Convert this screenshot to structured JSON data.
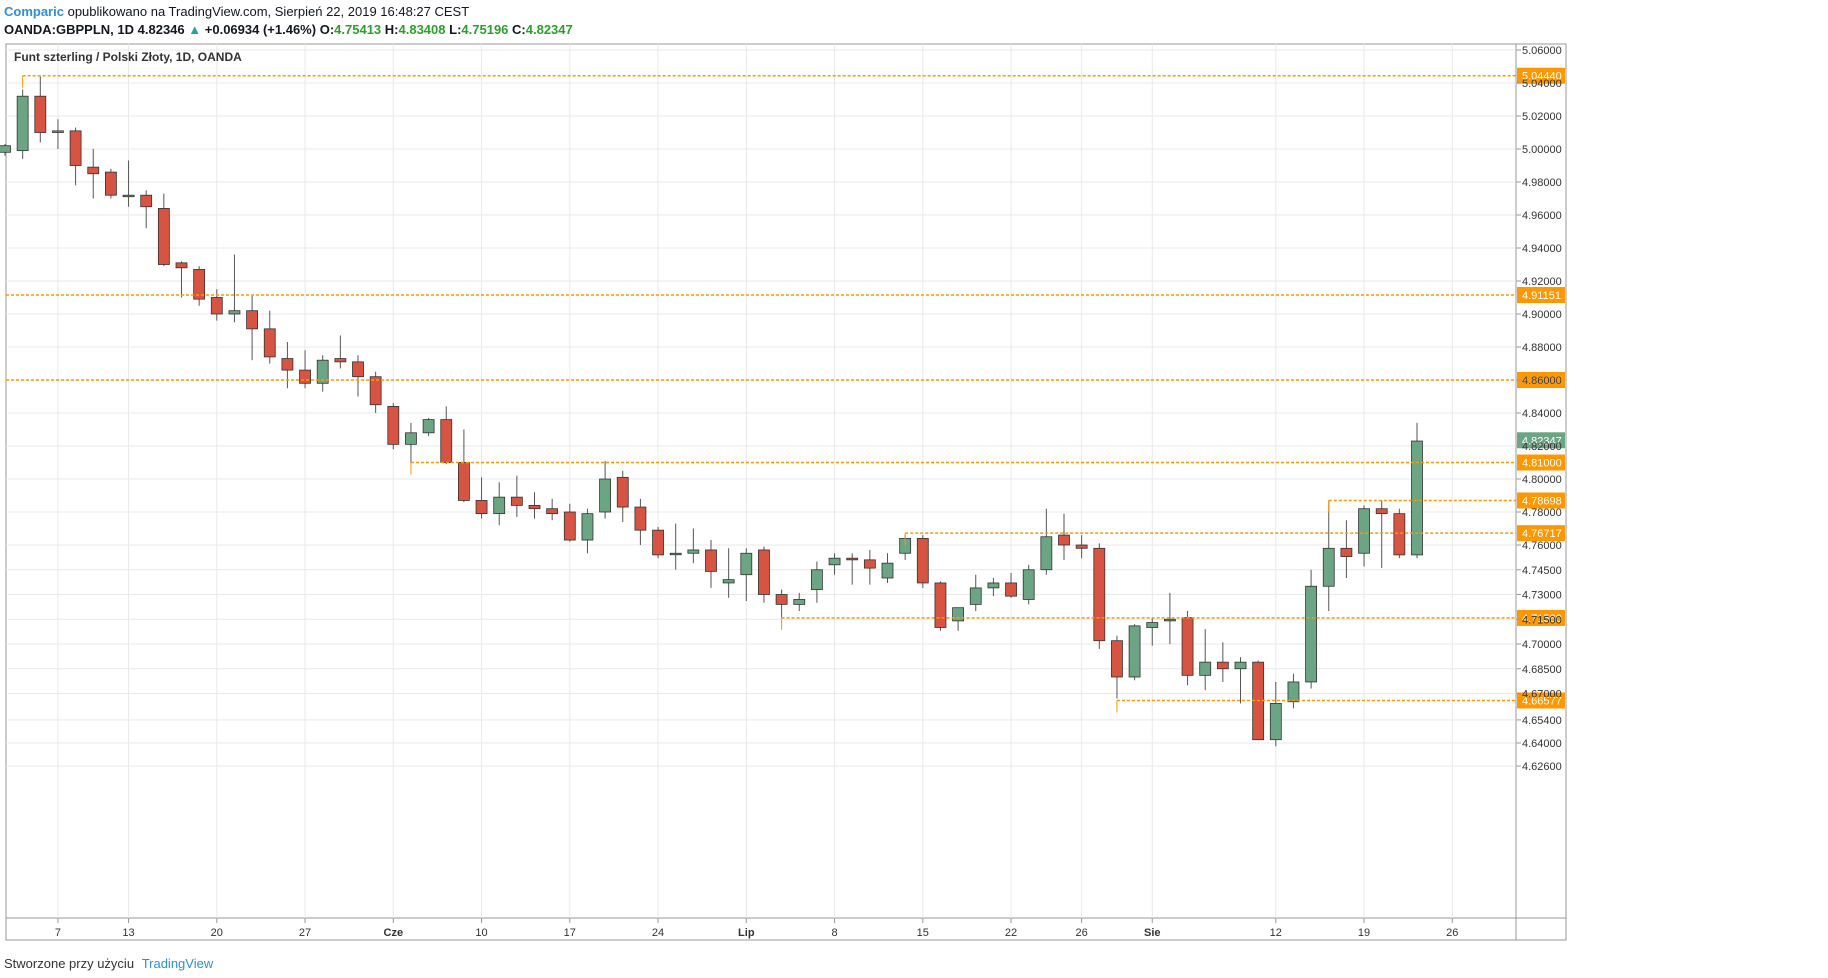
{
  "header": {
    "brand": "Comparic",
    "published_text": "opublikowano na TradingView.com, Sierpień 22, 2019 16:48:27 CEST",
    "symbol": "OANDA:GBPPLN, 1D",
    "last": "4.82346",
    "change_arrow": "▲",
    "change": "+0.06934 (+1.46%)",
    "open_label": "O:",
    "open": "4.75413",
    "high_label": "H:",
    "high": "4.83408",
    "low_label": "L:",
    "low": "4.75196",
    "close_label": "C:",
    "close": "4.82347"
  },
  "legend": "Funt szterling / Polski Złoty, 1D, OANDA",
  "footer": {
    "created_text": "Stworzone przy użyciu",
    "tradingview": "TradingView"
  },
  "colors": {
    "bull": "#6ba583",
    "bear": "#d75442",
    "level": "#ff9800",
    "grid": "#e9e9ea",
    "last_tag": "#6ba583"
  },
  "chart_data": {
    "type": "candlestick",
    "y_ticks": [
      "5.06000",
      "5.04000",
      "5.02000",
      "5.00000",
      "4.98000",
      "4.96000",
      "4.94000",
      "4.92000",
      "4.90000",
      "4.88000",
      "4.86000",
      "4.84000",
      "4.82000",
      "4.80000",
      "4.78000",
      "4.76000",
      "4.74500",
      "4.73000",
      "4.71500",
      "4.70000",
      "4.68500",
      "4.67000",
      "4.65400",
      "4.64000",
      "4.62600"
    ],
    "x_ticks": [
      "7",
      "13",
      "20",
      "27",
      "Cze",
      "10",
      "17",
      "24",
      "Lip",
      "8",
      "15",
      "22",
      "26",
      "Sie",
      "12",
      "19",
      "26"
    ],
    "levels": [
      {
        "label": "5.04440",
        "value": 5.0444,
        "from_index": 1
      },
      {
        "label": "4.91151",
        "value": 4.91151,
        "from_index": 0
      },
      {
        "label": "4.86000",
        "value": 4.86,
        "from_index": 0
      },
      {
        "label": "4.81000",
        "value": 4.81,
        "from_index": 23
      },
      {
        "label": "4.78698",
        "value": 4.78698,
        "from_index": 75
      },
      {
        "label": "4.76717",
        "value": 4.76717,
        "from_index": 51
      },
      {
        "label": "4.71580",
        "value": 4.7158,
        "from_index": 44
      },
      {
        "label": "4.66577",
        "value": 4.66577,
        "from_index": 63
      }
    ],
    "last_price_label": "4.82347",
    "last_price": 4.82347,
    "candles": [
      {
        "o": 4.998,
        "h": 5.003,
        "l": 4.996,
        "c": 5.002
      },
      {
        "o": 4.999,
        "h": 5.036,
        "l": 4.994,
        "c": 5.032
      },
      {
        "o": 5.032,
        "h": 5.044,
        "l": 5.004,
        "c": 5.01
      },
      {
        "o": 5.01,
        "h": 5.018,
        "l": 5.0,
        "c": 5.011
      },
      {
        "o": 5.011,
        "h": 5.013,
        "l": 4.978,
        "c": 4.99
      },
      {
        "o": 4.989,
        "h": 5.0,
        "l": 4.97,
        "c": 4.985
      },
      {
        "o": 4.986,
        "h": 4.988,
        "l": 4.97,
        "c": 4.972
      },
      {
        "o": 4.972,
        "h": 4.993,
        "l": 4.965,
        "c": 4.972
      },
      {
        "o": 4.972,
        "h": 4.975,
        "l": 4.952,
        "c": 4.965
      },
      {
        "o": 4.964,
        "h": 4.973,
        "l": 4.929,
        "c": 4.93
      },
      {
        "o": 4.931,
        "h": 4.932,
        "l": 4.91,
        "c": 4.928
      },
      {
        "o": 4.927,
        "h": 4.929,
        "l": 4.905,
        "c": 4.909
      },
      {
        "o": 4.91,
        "h": 4.915,
        "l": 4.896,
        "c": 4.9
      },
      {
        "o": 4.9,
        "h": 4.936,
        "l": 4.895,
        "c": 4.902
      },
      {
        "o": 4.902,
        "h": 4.911,
        "l": 4.872,
        "c": 4.891
      },
      {
        "o": 4.891,
        "h": 4.902,
        "l": 4.87,
        "c": 4.874
      },
      {
        "o": 4.873,
        "h": 4.883,
        "l": 4.855,
        "c": 4.866
      },
      {
        "o": 4.866,
        "h": 4.878,
        "l": 4.855,
        "c": 4.858
      },
      {
        "o": 4.858,
        "h": 4.875,
        "l": 4.853,
        "c": 4.872
      },
      {
        "o": 4.873,
        "h": 4.887,
        "l": 4.867,
        "c": 4.871
      },
      {
        "o": 4.871,
        "h": 4.875,
        "l": 4.85,
        "c": 4.862
      },
      {
        "o": 4.862,
        "h": 4.865,
        "l": 4.84,
        "c": 4.845
      },
      {
        "o": 4.844,
        "h": 4.846,
        "l": 4.818,
        "c": 4.821
      },
      {
        "o": 4.821,
        "h": 4.834,
        "l": 4.81,
        "c": 4.828
      },
      {
        "o": 4.828,
        "h": 4.837,
        "l": 4.826,
        "c": 4.836
      },
      {
        "o": 4.836,
        "h": 4.844,
        "l": 4.809,
        "c": 4.81
      },
      {
        "o": 4.81,
        "h": 4.83,
        "l": 4.786,
        "c": 4.787
      },
      {
        "o": 4.787,
        "h": 4.801,
        "l": 4.776,
        "c": 4.779
      },
      {
        "o": 4.779,
        "h": 4.798,
        "l": 4.772,
        "c": 4.789
      },
      {
        "o": 4.789,
        "h": 4.802,
        "l": 4.777,
        "c": 4.784
      },
      {
        "o": 4.784,
        "h": 4.792,
        "l": 4.776,
        "c": 4.782
      },
      {
        "o": 4.782,
        "h": 4.788,
        "l": 4.775,
        "c": 4.779
      },
      {
        "o": 4.78,
        "h": 4.785,
        "l": 4.762,
        "c": 4.763
      },
      {
        "o": 4.763,
        "h": 4.782,
        "l": 4.755,
        "c": 4.779
      },
      {
        "o": 4.78,
        "h": 4.811,
        "l": 4.776,
        "c": 4.8
      },
      {
        "o": 4.801,
        "h": 4.805,
        "l": 4.774,
        "c": 4.783
      },
      {
        "o": 4.783,
        "h": 4.788,
        "l": 4.76,
        "c": 4.769
      },
      {
        "o": 4.769,
        "h": 4.771,
        "l": 4.752,
        "c": 4.754
      },
      {
        "o": 4.755,
        "h": 4.773,
        "l": 4.745,
        "c": 4.755
      },
      {
        "o": 4.755,
        "h": 4.77,
        "l": 4.749,
        "c": 4.757
      },
      {
        "o": 4.757,
        "h": 4.763,
        "l": 4.734,
        "c": 4.744
      },
      {
        "o": 4.737,
        "h": 4.758,
        "l": 4.728,
        "c": 4.739
      },
      {
        "o": 4.742,
        "h": 4.758,
        "l": 4.726,
        "c": 4.755
      },
      {
        "o": 4.757,
        "h": 4.759,
        "l": 4.725,
        "c": 4.73
      },
      {
        "o": 4.73,
        "h": 4.733,
        "l": 4.716,
        "c": 4.724
      },
      {
        "o": 4.724,
        "h": 4.731,
        "l": 4.72,
        "c": 4.727
      },
      {
        "o": 4.733,
        "h": 4.75,
        "l": 4.725,
        "c": 4.745
      },
      {
        "o": 4.748,
        "h": 4.755,
        "l": 4.742,
        "c": 4.752
      },
      {
        "o": 4.752,
        "h": 4.755,
        "l": 4.736,
        "c": 4.751
      },
      {
        "o": 4.751,
        "h": 4.757,
        "l": 4.736,
        "c": 4.746
      },
      {
        "o": 4.74,
        "h": 4.755,
        "l": 4.737,
        "c": 4.749
      },
      {
        "o": 4.755,
        "h": 4.766,
        "l": 4.751,
        "c": 4.764
      },
      {
        "o": 4.764,
        "h": 4.766,
        "l": 4.734,
        "c": 4.737
      },
      {
        "o": 4.737,
        "h": 4.738,
        "l": 4.708,
        "c": 4.71
      },
      {
        "o": 4.714,
        "h": 4.72,
        "l": 4.708,
        "c": 4.722
      },
      {
        "o": 4.724,
        "h": 4.742,
        "l": 4.72,
        "c": 4.734
      },
      {
        "o": 4.734,
        "h": 4.74,
        "l": 4.729,
        "c": 4.737
      },
      {
        "o": 4.737,
        "h": 4.743,
        "l": 4.728,
        "c": 4.729
      },
      {
        "o": 4.727,
        "h": 4.748,
        "l": 4.724,
        "c": 4.745
      },
      {
        "o": 4.745,
        "h": 4.782,
        "l": 4.742,
        "c": 4.765
      },
      {
        "o": 4.766,
        "h": 4.779,
        "l": 4.751,
        "c": 4.76
      },
      {
        "o": 4.76,
        "h": 4.766,
        "l": 4.752,
        "c": 4.758
      },
      {
        "o": 4.758,
        "h": 4.761,
        "l": 4.697,
        "c": 4.702
      },
      {
        "o": 4.702,
        "h": 4.705,
        "l": 4.667,
        "c": 4.68
      },
      {
        "o": 4.68,
        "h": 4.712,
        "l": 4.678,
        "c": 4.711
      },
      {
        "o": 4.71,
        "h": 4.716,
        "l": 4.699,
        "c": 4.713
      },
      {
        "o": 4.714,
        "h": 4.731,
        "l": 4.7,
        "c": 4.715
      },
      {
        "o": 4.716,
        "h": 4.72,
        "l": 4.675,
        "c": 4.681
      },
      {
        "o": 4.681,
        "h": 4.709,
        "l": 4.672,
        "c": 4.689
      },
      {
        "o": 4.689,
        "h": 4.701,
        "l": 4.677,
        "c": 4.685
      },
      {
        "o": 4.685,
        "h": 4.692,
        "l": 4.664,
        "c": 4.689
      },
      {
        "o": 4.689,
        "h": 4.69,
        "l": 4.642,
        "c": 4.642
      },
      {
        "o": 4.642,
        "h": 4.677,
        "l": 4.638,
        "c": 4.664
      },
      {
        "o": 4.665,
        "h": 4.682,
        "l": 4.661,
        "c": 4.677
      },
      {
        "o": 4.677,
        "h": 4.745,
        "l": 4.673,
        "c": 4.735
      },
      {
        "o": 4.735,
        "h": 4.787,
        "l": 4.72,
        "c": 4.758
      },
      {
        "o": 4.758,
        "h": 4.775,
        "l": 4.74,
        "c": 4.753
      },
      {
        "o": 4.755,
        "h": 4.784,
        "l": 4.747,
        "c": 4.782
      },
      {
        "o": 4.782,
        "h": 4.787,
        "l": 4.746,
        "c": 4.779
      },
      {
        "o": 4.779,
        "h": 4.782,
        "l": 4.752,
        "c": 4.754
      },
      {
        "o": 4.754,
        "h": 4.834,
        "l": 4.752,
        "c": 4.823
      }
    ]
  }
}
